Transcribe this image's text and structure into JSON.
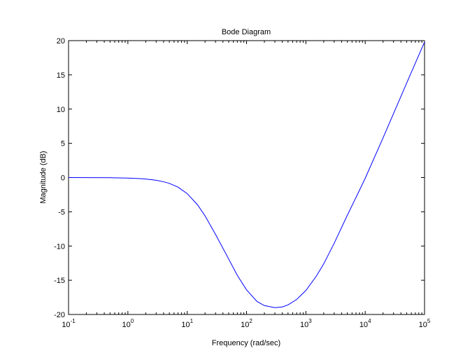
{
  "chart_data": {
    "type": "line",
    "title": "Bode Diagram",
    "xlabel": "Frequency  (rad/sec)",
    "ylabel": "Magnitude (dB)",
    "xscale": "log",
    "xlim": [
      0.1,
      100000
    ],
    "ylim": [
      -20,
      20
    ],
    "x_ticks": [
      {
        "base": "10",
        "exp": "-1",
        "value": 0.1
      },
      {
        "base": "10",
        "exp": "0",
        "value": 1
      },
      {
        "base": "10",
        "exp": "1",
        "value": 10
      },
      {
        "base": "10",
        "exp": "2",
        "value": 100
      },
      {
        "base": "10",
        "exp": "3",
        "value": 1000
      },
      {
        "base": "10",
        "exp": "4",
        "value": 10000
      },
      {
        "base": "10",
        "exp": "5",
        "value": 100000
      }
    ],
    "y_ticks": [
      "-20",
      "-15",
      "-10",
      "-5",
      "0",
      "5",
      "10",
      "15",
      "20"
    ],
    "grid": false,
    "line_color": "#0000ff",
    "series": [
      {
        "x": [
          0.1,
          0.5,
          1,
          1.5,
          2,
          3,
          4,
          5,
          7,
          10,
          15,
          20,
          30,
          50,
          70,
          100,
          150,
          200,
          300,
          400,
          500,
          700,
          1000,
          1500,
          2000,
          3000,
          5000,
          7000,
          10000,
          20000,
          50000,
          100000
        ],
        "y": [
          0,
          -0.02,
          -0.08,
          -0.14,
          -0.22,
          -0.4,
          -0.62,
          -0.85,
          -1.4,
          -2.35,
          -4.0,
          -5.6,
          -8.3,
          -11.9,
          -14.3,
          -16.4,
          -18.1,
          -18.7,
          -19.0,
          -18.9,
          -18.6,
          -17.8,
          -16.5,
          -14.4,
          -12.6,
          -9.6,
          -5.5,
          -2.9,
          -0.1,
          5.8,
          13.8,
          19.8
        ]
      }
    ]
  }
}
